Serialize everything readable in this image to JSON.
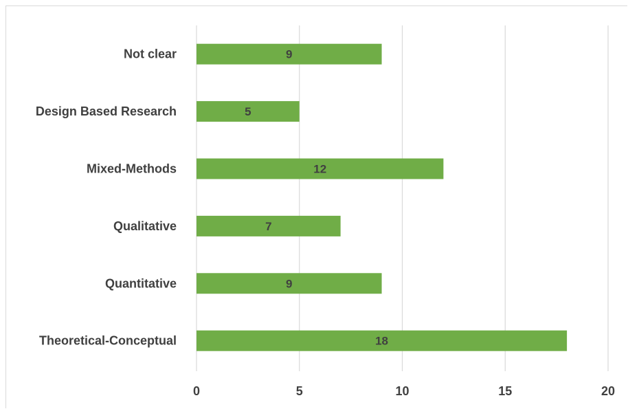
{
  "chart_data": {
    "type": "bar",
    "orientation": "horizontal",
    "title": "",
    "xlabel": "",
    "ylabel": "",
    "categories": [
      "Not clear",
      "Design Based Research",
      "Mixed-Methods",
      "Qualitative",
      "Quantitative",
      "Theoretical-Conceptual"
    ],
    "values": [
      9,
      5,
      12,
      7,
      9,
      18
    ],
    "xlim": [
      0,
      20
    ],
    "xticks": [
      "0",
      "5",
      "10",
      "15",
      "20"
    ],
    "grid": true,
    "legend": "none",
    "data_labels": true,
    "bar_color": "#70ad47",
    "grid_color": "#d9d9d9",
    "text_color": "#404040"
  }
}
